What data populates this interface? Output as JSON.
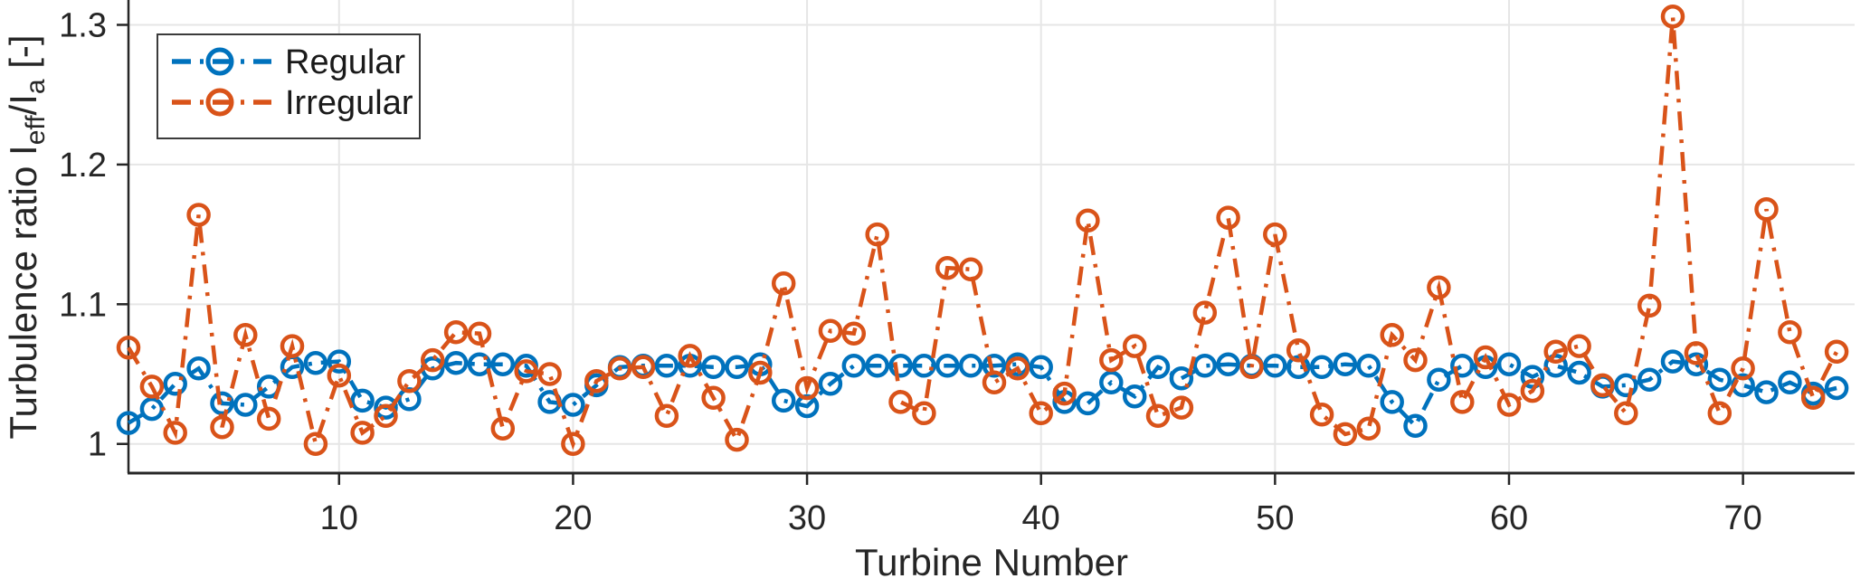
{
  "chart_data": {
    "type": "line",
    "title": "",
    "xlabel": "Turbine Number",
    "ylabel_plain": "Turbulence ratio Ieff/Ia [-]",
    "ylabel_segments": [
      {
        "text": "Turbulence ratio I",
        "sub": false
      },
      {
        "text": "eff",
        "sub": true
      },
      {
        "text": "/I",
        "sub": false
      },
      {
        "text": "a",
        "sub": true
      },
      {
        "text": " [-]",
        "sub": false
      }
    ],
    "x_start": 1,
    "xlim": [
      1,
      74.77
    ],
    "ylim": [
      0.9791,
      1.3178
    ],
    "xticks": [
      10,
      20,
      30,
      40,
      50,
      60,
      70
    ],
    "yticks": [
      1,
      1.1,
      1.2,
      1.3
    ],
    "ytick_labels": [
      "1",
      "1.1",
      "1.2",
      "1.3"
    ],
    "grid": true,
    "legend_position": "top-left",
    "colors": {
      "regular": "#0072BD",
      "irregular": "#D95319",
      "axis": "#262626",
      "grid": "#e6e6e6",
      "legend_border": "#3b3b3b"
    },
    "marker": "open-circle",
    "line_style": "dash-dot",
    "series": [
      {
        "name": "Regular",
        "color": "#0072BD",
        "values": [
          1.015,
          1.025,
          1.043,
          1.054,
          1.029,
          1.028,
          1.041,
          1.055,
          1.058,
          1.059,
          1.031,
          1.026,
          1.032,
          1.054,
          1.058,
          1.057,
          1.057,
          1.056,
          1.03,
          1.028,
          1.042,
          1.055,
          1.056,
          1.056,
          1.056,
          1.055,
          1.055,
          1.057,
          1.031,
          1.027,
          1.043,
          1.056,
          1.056,
          1.056,
          1.056,
          1.056,
          1.056,
          1.056,
          1.057,
          1.055,
          1.03,
          1.029,
          1.044,
          1.034,
          1.055,
          1.047,
          1.056,
          1.057,
          1.056,
          1.056,
          1.055,
          1.055,
          1.057,
          1.056,
          1.03,
          1.013,
          1.046,
          1.056,
          1.055,
          1.057,
          1.048,
          1.056,
          1.051,
          1.041,
          1.042,
          1.046,
          1.059,
          1.057,
          1.046,
          1.042,
          1.037,
          1.044,
          1.036,
          1.04
        ]
      },
      {
        "name": "Irregular",
        "color": "#D95319",
        "values": [
          1.069,
          1.041,
          1.008,
          1.164,
          1.012,
          1.078,
          1.018,
          1.07,
          1.0,
          1.049,
          1.008,
          1.02,
          1.045,
          1.06,
          1.08,
          1.079,
          1.011,
          1.052,
          1.05,
          1.0,
          1.045,
          1.054,
          1.055,
          1.02,
          1.063,
          1.033,
          1.003,
          1.051,
          1.115,
          1.04,
          1.081,
          1.079,
          1.15,
          1.03,
          1.022,
          1.126,
          1.125,
          1.044,
          1.054,
          1.022,
          1.036,
          1.16,
          1.06,
          1.07,
          1.02,
          1.026,
          1.094,
          1.162,
          1.055,
          1.15,
          1.067,
          1.021,
          1.007,
          1.011,
          1.078,
          1.06,
          1.112,
          1.03,
          1.062,
          1.028,
          1.038,
          1.066,
          1.07,
          1.042,
          1.022,
          1.099,
          1.306,
          1.065,
          1.022,
          1.054,
          1.168,
          1.08,
          1.033,
          1.066
        ]
      }
    ]
  }
}
